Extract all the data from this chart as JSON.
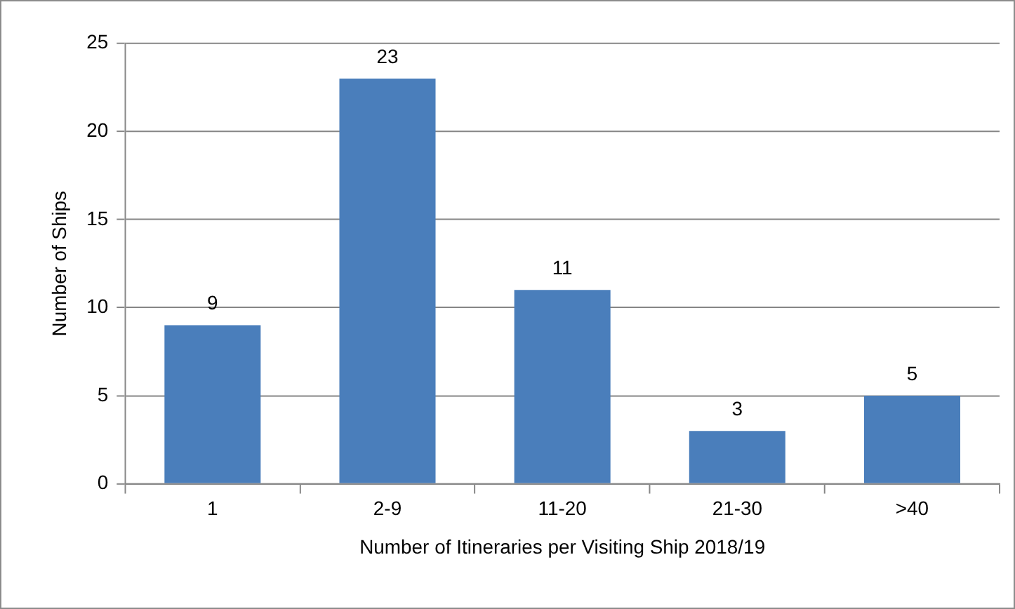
{
  "chart_data": {
    "type": "bar",
    "xlabel": "Number of Itineraries per Visiting Ship 2018/19",
    "ylabel": "Number of Ships",
    "categories": [
      "1",
      "2-9",
      "11-20",
      "21-30",
      ">40"
    ],
    "values": [
      9,
      23,
      11,
      3,
      5
    ],
    "color": "#4a7ebb",
    "ylim": [
      0,
      25
    ],
    "yticks": [
      0,
      5,
      10,
      15,
      20,
      25
    ],
    "grid": "y",
    "data_labels": true,
    "legend": false
  }
}
